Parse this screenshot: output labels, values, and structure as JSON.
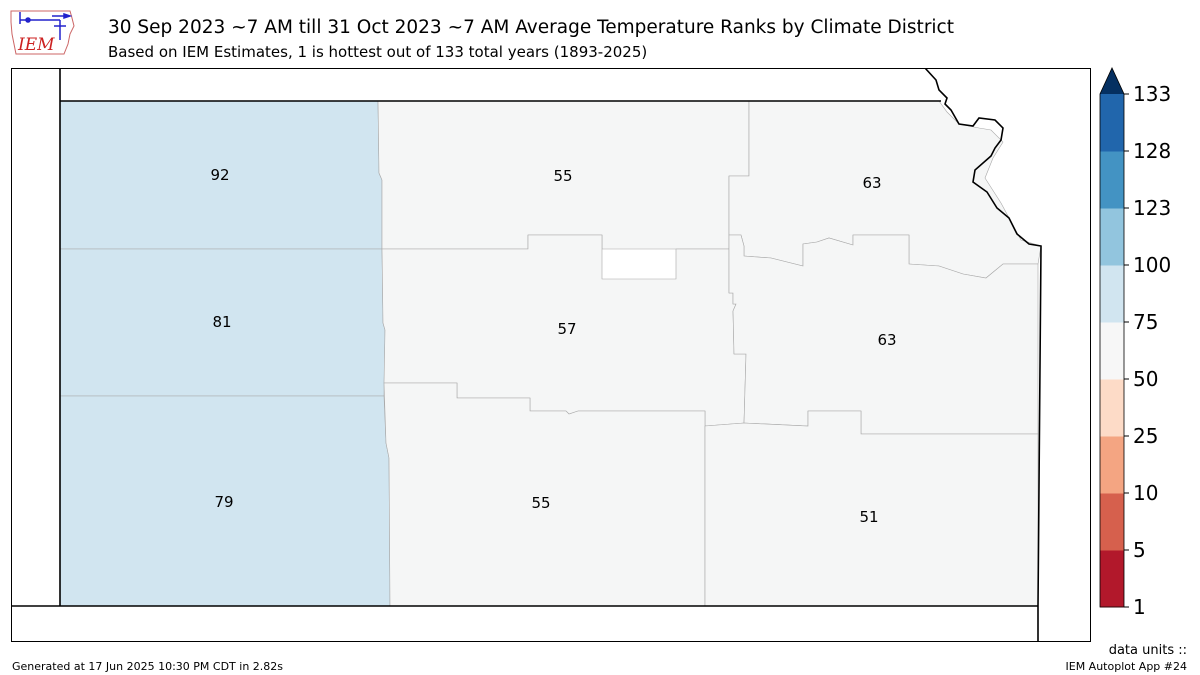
{
  "header": {
    "title": "30 Sep 2023 ~7 AM till 31 Oct 2023 ~7 AM Average Temperature Ranks by Climate District",
    "subtitle": "Based on IEM Estimates, 1 is hottest out of 133 total years (1893-2025)"
  },
  "logo": {
    "text": "IEM"
  },
  "districts": {
    "nw": {
      "rank": "92",
      "color": "#d1e5f0"
    },
    "wc": {
      "rank": "81",
      "color": "#d1e5f0"
    },
    "sw": {
      "rank": "79",
      "color": "#d1e5f0"
    },
    "nc": {
      "rank": "55",
      "color": "#f5f6f6"
    },
    "c": {
      "rank": "57",
      "color": "#f5f6f6"
    },
    "sc": {
      "rank": "55",
      "color": "#f5f6f6"
    },
    "ne": {
      "rank": "63",
      "color": "#f5f6f6"
    },
    "ec": {
      "rank": "63",
      "color": "#f5f6f6"
    },
    "se": {
      "rank": "51",
      "color": "#f5f6f6"
    }
  },
  "colorbar": {
    "ticks": [
      "133",
      "128",
      "123",
      "100",
      "75",
      "50",
      "25",
      "10",
      "5",
      "1"
    ],
    "colors": [
      "#b2182b",
      "#d6604d",
      "#f4a582",
      "#fddbc7",
      "#f7f7f7",
      "#d1e5f0",
      "#92c5de",
      "#4393c3",
      "#2166ac",
      "#053061"
    ]
  },
  "footer": {
    "units": "data units ::",
    "generated": "Generated at 17 Jun 2025 10:30 PM CDT in 2.82s",
    "app": "IEM Autoplot App #24"
  }
}
